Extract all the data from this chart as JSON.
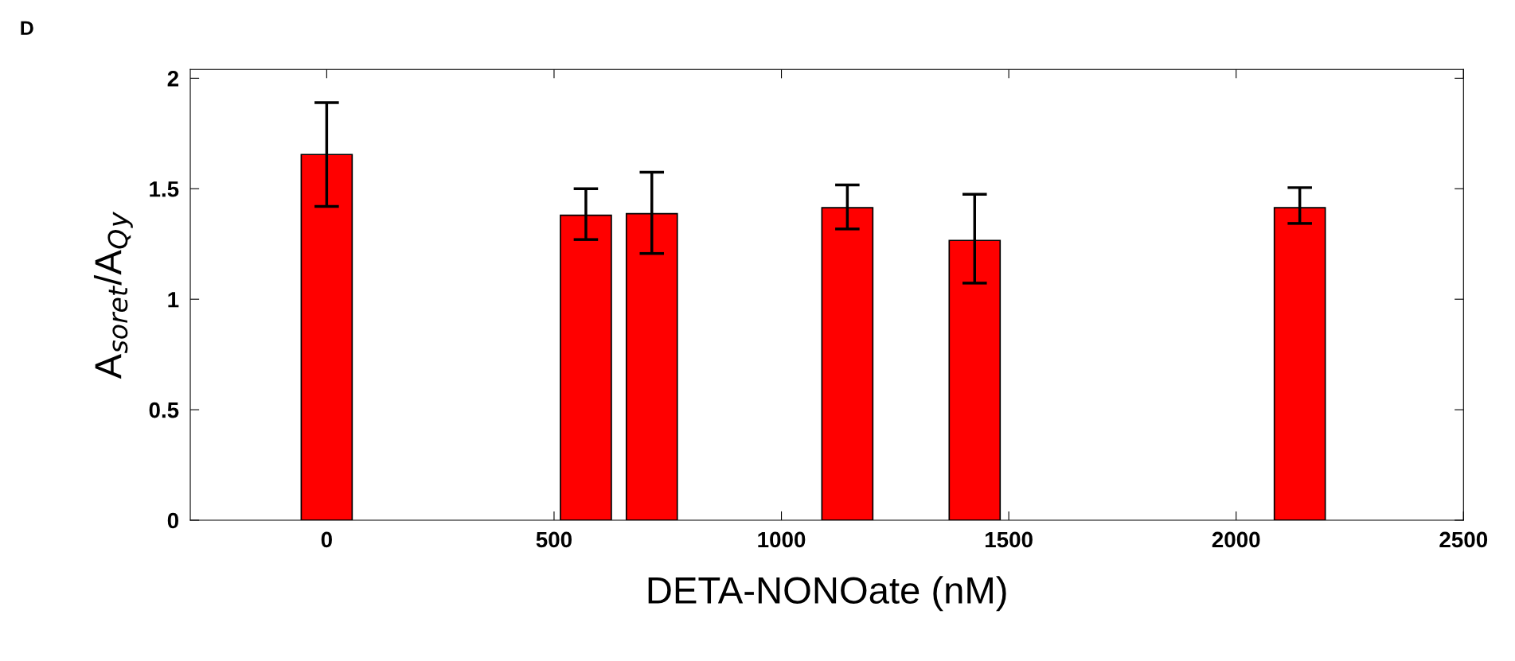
{
  "chart_data": {
    "type": "bar",
    "xlabel": "DETA-NONOate (nM)",
    "ylabel": "A$_{soret}$/A$_{Q}$$_{y}$",
    "annotations": [
      "D"
    ],
    "x": [
      0,
      570,
      715,
      1145,
      1425,
      2140
    ],
    "values": [
      1.655,
      1.38,
      1.387,
      1.414,
      1.266,
      1.414
    ],
    "errors": [
      [
        1.42,
        1.89
      ],
      [
        1.27,
        1.5
      ],
      [
        1.207,
        1.575
      ],
      [
        1.318,
        1.517
      ],
      [
        1.073,
        1.475
      ],
      [
        1.343,
        1.505
      ]
    ],
    "color": "#ff0000",
    "xlim": [
      -300,
      2500
    ],
    "xticks": [
      0,
      500,
      1000,
      1500,
      2000,
      2500
    ],
    "ylim": [
      0,
      2.04
    ],
    "yticks": [
      0,
      0.5,
      1,
      1.5,
      2
    ],
    "grid": false
  }
}
